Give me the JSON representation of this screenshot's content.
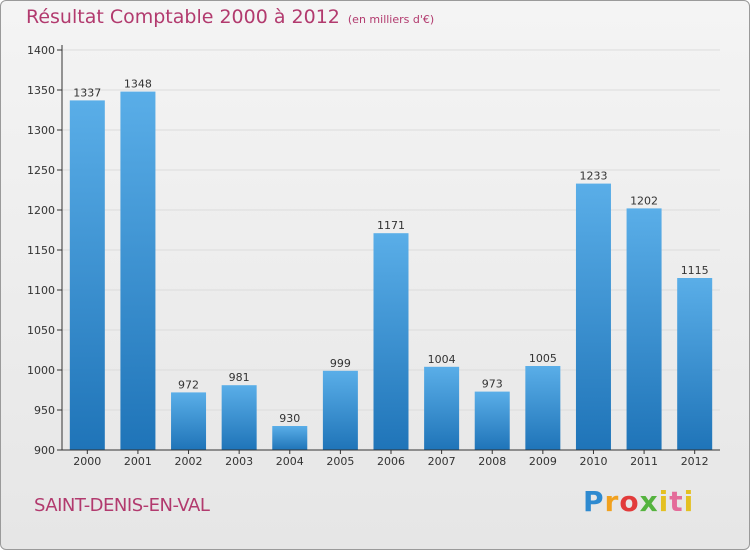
{
  "header": {
    "title": "Résultat Comptable 2000 à 2012",
    "subtitle": "(en milliers d'€)"
  },
  "footer": {
    "city": "SAINT-DENIS-EN-VAL",
    "logo_text": "Proxiti"
  },
  "colors": {
    "bar_light": "#5aaee8",
    "bar_dark": "#1f74b8",
    "title": "#b23a6e",
    "grid": "#dcdcdc",
    "axis": "#333333"
  },
  "chart_data": {
    "type": "bar",
    "title": "Résultat Comptable 2000 à 2012",
    "subtitle": "(en milliers d'€)",
    "categories": [
      "2000",
      "2001",
      "2002",
      "2003",
      "2004",
      "2005",
      "2006",
      "2007",
      "2008",
      "2009",
      "2010",
      "2011",
      "2012"
    ],
    "values": [
      1337,
      1348,
      972,
      981,
      930,
      999,
      1171,
      1004,
      973,
      1005,
      1233,
      1202,
      1115
    ],
    "ylim": [
      900,
      1400
    ],
    "yticks": [
      900,
      950,
      1000,
      1050,
      1100,
      1150,
      1200,
      1250,
      1300,
      1350,
      1400
    ],
    "xlabel": "",
    "ylabel": "",
    "grid": true,
    "data_labels": true
  }
}
